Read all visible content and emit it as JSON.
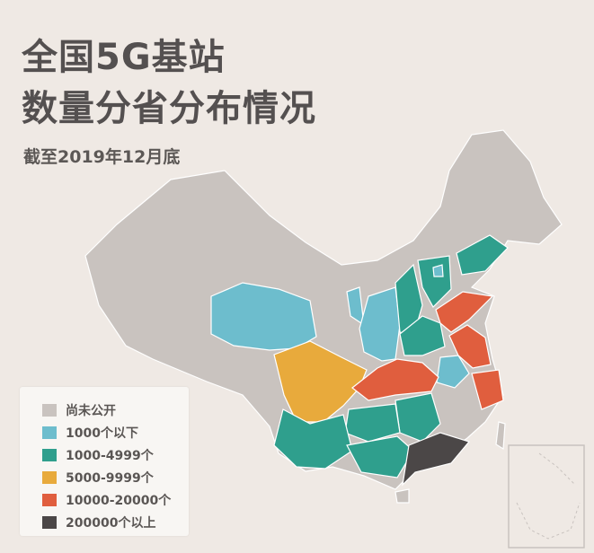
{
  "title_line1": "全国5G基站",
  "title_line2": "数量分省分布情况",
  "subtitle": "截至2019年12月底",
  "colors": {
    "background": "#efe9e4",
    "border": "#ffffff"
  },
  "legend": [
    {
      "label": "尚未公开",
      "color": "#c9c3bf"
    },
    {
      "label": "1000个以下",
      "color": "#6dbdcd"
    },
    {
      "label": "1000-4999个",
      "color": "#2f9f8d"
    },
    {
      "label": "5000-9999个",
      "color": "#e8aa3c"
    },
    {
      "label": "10000-20000个",
      "color": "#e05e3e"
    },
    {
      "label": "200000个以上",
      "color": "#4b4747"
    }
  ]
}
